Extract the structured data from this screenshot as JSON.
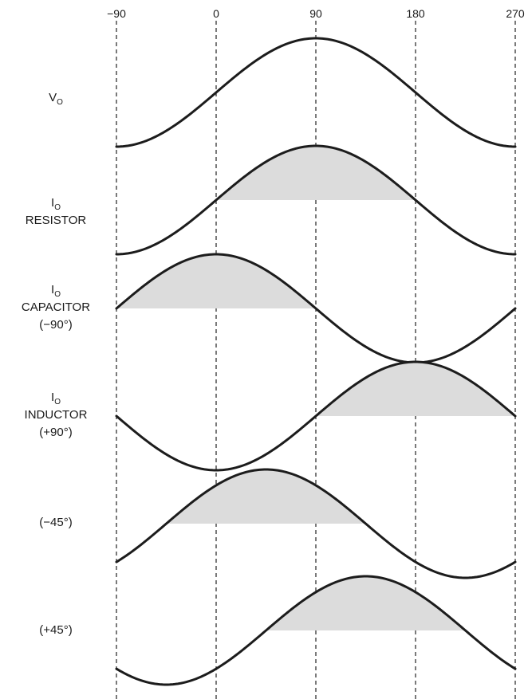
{
  "chart_data": {
    "type": "line",
    "x_ticks": [
      "−90",
      "0",
      "90",
      "180",
      "270"
    ],
    "x_range": [
      -90,
      270
    ],
    "grid": "vertical dashed lines at each tick",
    "rows": [
      {
        "id": "vo",
        "label_main": "V",
        "label_sub": "O",
        "lines": [],
        "phase_shift_deg": 0,
        "shaded": false
      },
      {
        "id": "io-resistor",
        "label_main": "I",
        "label_sub": "O",
        "lines": [
          "RESISTOR"
        ],
        "phase_shift_deg": 0,
        "shaded": true
      },
      {
        "id": "io-capacitor",
        "label_main": "I",
        "label_sub": "O",
        "lines": [
          "CAPACITOR",
          "(−90°)"
        ],
        "phase_shift_deg": -90,
        "shaded": true
      },
      {
        "id": "io-inductor",
        "label_main": "I",
        "label_sub": "O",
        "lines": [
          "INDUCTOR",
          "(+90°)"
        ],
        "phase_shift_deg": 90,
        "shaded": true
      },
      {
        "id": "minus-45",
        "label_main": "",
        "label_sub": "",
        "lines": [
          "(−45°)"
        ],
        "phase_shift_deg": -45,
        "shaded": true
      },
      {
        "id": "plus-45",
        "label_main": "",
        "label_sub": "",
        "lines": [
          "(+45°)"
        ],
        "phase_shift_deg": 45,
        "shaded": true
      }
    ]
  }
}
